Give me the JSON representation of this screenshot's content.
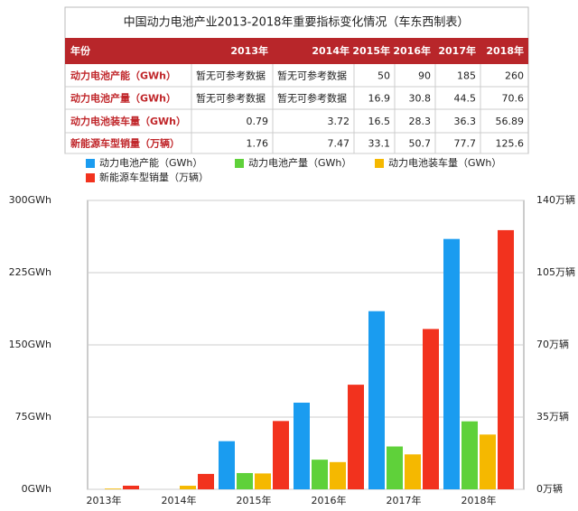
{
  "table": {
    "title": "中国动力电池产业2013-2018年重要指标变化情况（车东西制表）",
    "header": [
      "年份",
      "2013年",
      "2014年",
      "2015年",
      "2016年",
      "2017年",
      "2018年"
    ],
    "rows": [
      [
        "动力电池产能（GWh）",
        "暂无可参考数据",
        "暂无可参考数据",
        50,
        90,
        185,
        260
      ],
      [
        "动力电池产量（GWh）",
        "暂无可参考数据",
        "暂无可参考数据",
        16.9,
        30.8,
        44.5,
        70.6
      ],
      [
        "动力电池装车量（GWh）",
        0.79,
        3.72,
        16.5,
        28.3,
        36.3,
        56.89
      ],
      [
        "新能源车型销量（万辆）",
        1.76,
        7.47,
        33.1,
        50.7,
        77.7,
        125.6
      ]
    ]
  },
  "chart_data": {
    "type": "bar",
    "categories": [
      "2013年",
      "2014年",
      "2015年",
      "2016年",
      "2017年",
      "2018年"
    ],
    "series": [
      {
        "name": "动力电池产能（GWh）",
        "color": "#1a9cf0",
        "values": [
          null,
          null,
          50,
          90,
          185,
          260
        ]
      },
      {
        "name": "动力电池产量（GWh）",
        "color": "#5fd13a",
        "values": [
          null,
          null,
          16.9,
          30.8,
          44.5,
          70.6
        ]
      },
      {
        "name": "动力电池装车量（GWh）",
        "color": "#f5b800",
        "values": [
          0.79,
          3.72,
          16.5,
          28.3,
          36.3,
          56.89
        ]
      },
      {
        "name": "新能源车型销量（万辆）",
        "color": "#f2321e",
        "axis": "y2",
        "values": [
          1.76,
          7.47,
          33.1,
          50.7,
          77.7,
          125.6
        ]
      }
    ],
    "ylim": [
      0,
      300
    ],
    "yticks": [
      {
        "value": 0,
        "label": "0GWh"
      },
      {
        "value": 75,
        "label": "75GWh"
      },
      {
        "value": 150,
        "label": "150GWh"
      },
      {
        "value": 225,
        "label": "225GWh"
      },
      {
        "value": 300,
        "label": "300GWh"
      }
    ],
    "y2lim": [
      0,
      140
    ],
    "y2ticks": [
      {
        "value": 0,
        "label": "0万辆"
      },
      {
        "value": 35,
        "label": "35万辆"
      },
      {
        "value": 70,
        "label": "70万辆"
      },
      {
        "value": 105,
        "label": "105万辆"
      },
      {
        "value": 140,
        "label": "140万辆"
      }
    ],
    "grid": true
  }
}
